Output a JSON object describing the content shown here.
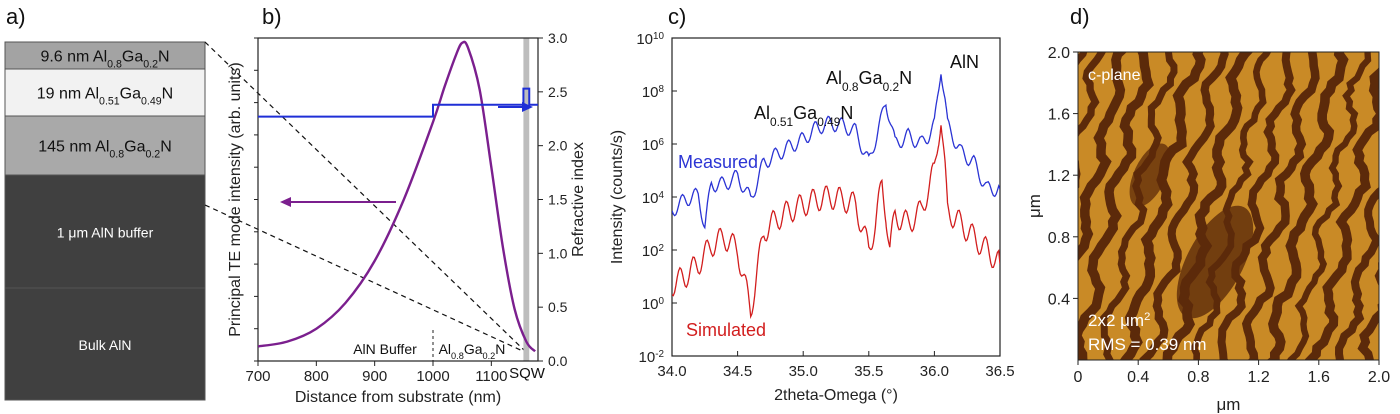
{
  "panels": {
    "a": {
      "letter": "a)"
    },
    "b": {
      "letter": "b)"
    },
    "c": {
      "letter": "c)"
    },
    "d": {
      "letter": "d)"
    }
  },
  "layers": [
    {
      "parts": [
        "9.6 nm Al",
        "0.8",
        "Ga",
        "0.2",
        "N"
      ],
      "color": "#a3a3a3",
      "text_color": "#111111"
    },
    {
      "parts": [
        "19 nm Al",
        "0.51",
        "Ga",
        "0.49",
        "N"
      ],
      "color": "#f2f2f2",
      "text_color": "#111111"
    },
    {
      "parts": [
        "145 nm Al",
        "0.8",
        "Ga",
        "0.2",
        "N"
      ],
      "color": "#a9a9a9",
      "text_color": "#111111"
    },
    {
      "parts": [
        "1 μm AlN buffer"
      ],
      "color": "#404040",
      "text_color": "#ffffff"
    },
    {
      "parts": [
        "Bulk AlN"
      ],
      "color": "#404040",
      "text_color": "#ffffff"
    }
  ],
  "chart_data": [
    {
      "id": "b",
      "type": "line",
      "xlabel": "Distance from substrate (nm)",
      "ylabel_left": "Principal TE mode intensity (arb. units)",
      "ylabel_right": "Refractive index",
      "xlim": [
        700,
        1180
      ],
      "xticks": [
        "700",
        "800",
        "900",
        "1000",
        "1100"
      ],
      "ylim_right": [
        0,
        3.0
      ],
      "yticks_right": [
        "0.0",
        "0.5",
        "1.0",
        "1.5",
        "2.0",
        "2.5",
        "3.0"
      ],
      "region_labels": [
        {
          "parts": [
            "AlN Buffer"
          ]
        },
        {
          "parts": [
            "Al",
            "0.8",
            "Ga",
            "0.2",
            "N"
          ]
        },
        {
          "parts": [
            "SQW"
          ]
        }
      ],
      "sqw_band": [
        1155,
        1165
      ],
      "series": [
        {
          "axis": "left",
          "color": "#7b1f8e",
          "x": [
            700,
            750,
            800,
            850,
            900,
            950,
            1000,
            1020,
            1040,
            1050,
            1060,
            1080,
            1100,
            1120,
            1140,
            1160,
            1175
          ],
          "y": [
            0.045,
            0.06,
            0.1,
            0.18,
            0.31,
            0.5,
            0.74,
            0.85,
            0.95,
            0.985,
            0.97,
            0.84,
            0.6,
            0.35,
            0.16,
            0.06,
            0.03
          ]
        },
        {
          "axis": "right",
          "color": "#1f2fd6",
          "x": [
            700,
            1000,
            1000,
            1145,
            1145,
            1155,
            1155,
            1165,
            1165,
            1180
          ],
          "y": [
            2.27,
            2.27,
            2.38,
            2.38,
            2.38,
            2.38,
            2.53,
            2.53,
            2.38,
            2.38
          ]
        }
      ]
    },
    {
      "id": "c",
      "type": "line",
      "xlabel": "2theta-Omega (°)",
      "ylabel": "Intensity (counts/s)",
      "xlim": [
        34.0,
        36.5
      ],
      "xticks": [
        "34.0",
        "34.5",
        "35.0",
        "35.5",
        "36.0",
        "36.5"
      ],
      "yscale": "log",
      "ylim": [
        0.01,
        10000000000.0
      ],
      "yticks": [
        {
          "base": "10",
          "exp": "10"
        },
        {
          "base": "10",
          "exp": "8"
        },
        {
          "base": "10",
          "exp": "6"
        },
        {
          "base": "10",
          "exp": "4"
        },
        {
          "base": "10",
          "exp": "2"
        },
        {
          "base": "10",
          "exp": "0"
        },
        {
          "base": "10",
          "exp": "-2"
        }
      ],
      "peak_labels": [
        {
          "parts": [
            "Al",
            "0.51",
            "Ga",
            "0.49",
            "N"
          ]
        },
        {
          "parts": [
            "Al",
            "0.8",
            "Ga",
            "0.2",
            "N"
          ]
        },
        {
          "parts": [
            "AlN"
          ]
        }
      ],
      "series": [
        {
          "name": "Measured",
          "color": "#2b34d4",
          "x": [
            34.0,
            34.1,
            34.2,
            34.25,
            34.3,
            34.4,
            34.5,
            34.6,
            34.7,
            34.8,
            34.9,
            35.0,
            35.1,
            35.2,
            35.3,
            35.4,
            35.5,
            35.55,
            35.6,
            35.63,
            35.66,
            35.7,
            35.8,
            35.9,
            35.95,
            36.0,
            36.03,
            36.05,
            36.08,
            36.1,
            36.2,
            36.3,
            36.4,
            36.5
          ],
          "y": [
            3000,
            8000,
            12000,
            800,
            30000,
            30000,
            60000,
            8000,
            200000,
            400000,
            800000,
            1500000,
            4000000,
            6000000,
            5000000,
            3000000,
            200000,
            1500000,
            10000000,
            40000000,
            10000000,
            1000000,
            2000000,
            1000000,
            2000000,
            5000000,
            100000000,
            800000000,
            50000000,
            5000000,
            500000,
            200000,
            20000,
            20000
          ]
        },
        {
          "name": "Simulated",
          "color": "#d21e1e",
          "x": [
            34.0,
            34.1,
            34.2,
            34.3,
            34.4,
            34.5,
            34.6,
            34.7,
            34.8,
            34.9,
            35.0,
            35.1,
            35.2,
            35.3,
            35.4,
            35.5,
            35.55,
            35.6,
            35.63,
            35.66,
            35.7,
            35.8,
            35.9,
            36.0,
            36.03,
            36.05,
            36.08,
            36.1,
            36.2,
            36.3,
            36.4,
            36.5
          ],
          "y": [
            5,
            10,
            30,
            150,
            300,
            100,
            0.5,
            500,
            1500,
            3000,
            5000,
            8000,
            10000,
            8000,
            5000,
            100,
            1000,
            30000,
            3000,
            100,
            2000,
            1000,
            3000,
            100000,
            2000000,
            10000000,
            100000,
            3000,
            1000,
            300,
            100,
            30
          ]
        }
      ]
    }
  ],
  "afm": {
    "labels": {
      "plane": "c-plane",
      "size_base": "2x2 μm",
      "size_exp": "2",
      "rms": "RMS = 0.39 nm"
    },
    "axes": {
      "xlabel": "μm",
      "ylabel": "μm",
      "xticks": [
        "0",
        "0.4",
        "0.8",
        "1.2",
        "1.6",
        "2.0"
      ],
      "yticks": [
        "0.4",
        "0.8",
        "1.2",
        "1.6",
        "2.0"
      ]
    },
    "colors": {
      "terrace": "#c98a26",
      "step": "#5c2a0a"
    }
  }
}
